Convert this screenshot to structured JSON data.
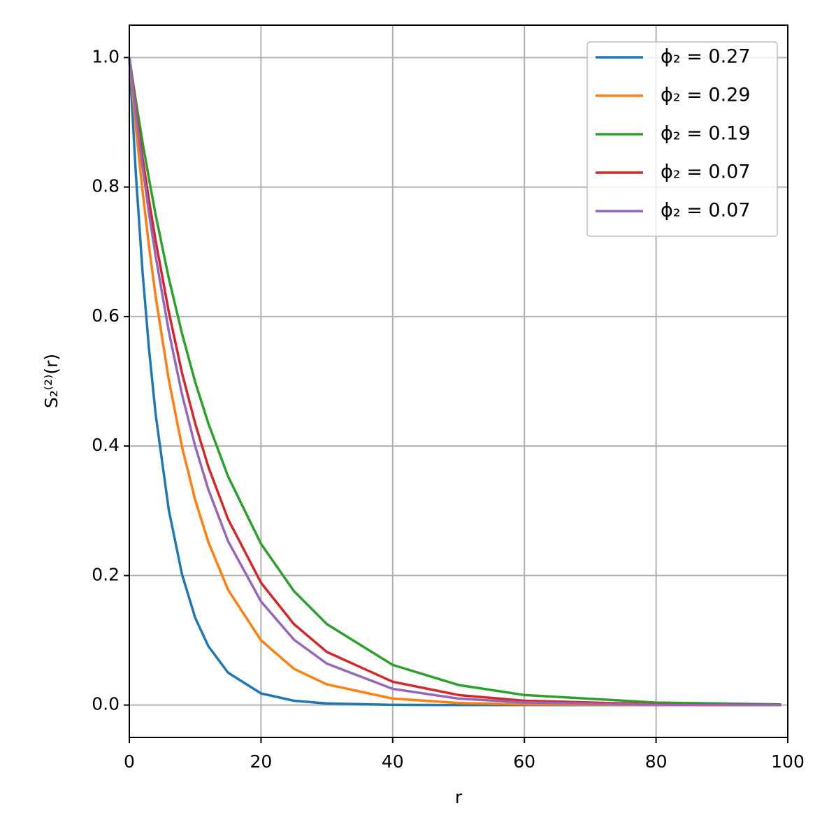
{
  "chart_data": {
    "type": "line",
    "x_label": "r",
    "y_label": "S₂⁽²⁾(r)",
    "x": [
      0,
      1,
      2,
      3,
      4,
      6,
      8,
      10,
      12,
      15,
      20,
      25,
      30,
      40,
      50,
      60,
      80,
      99
    ],
    "series": [
      {
        "name": "ϕ₂ = 0.27",
        "color": "#1f77b4",
        "values": [
          1,
          0.819,
          0.67,
          0.549,
          0.449,
          0.301,
          0.202,
          0.135,
          0.091,
          0.05,
          0.018,
          0.0067,
          0.0025,
          0.0003,
          0,
          0,
          0,
          0
        ]
      },
      {
        "name": "ϕ₂ = 0.29",
        "color": "#ff7f0e",
        "values": [
          1,
          0.891,
          0.795,
          0.708,
          0.631,
          0.502,
          0.399,
          0.317,
          0.252,
          0.178,
          0.1,
          0.056,
          0.032,
          0.01,
          0.0032,
          0.001,
          0.0001,
          0
        ]
      },
      {
        "name": "ϕ₂ = 0.19",
        "color": "#2ca02c",
        "values": [
          1,
          0.933,
          0.87,
          0.812,
          0.757,
          0.659,
          0.574,
          0.499,
          0.435,
          0.353,
          0.249,
          0.176,
          0.125,
          0.062,
          0.031,
          0.0155,
          0.0039,
          0.001
        ]
      },
      {
        "name": "ϕ₂ = 0.07",
        "color": "#d62728",
        "values": [
          1,
          0.92,
          0.846,
          0.779,
          0.717,
          0.607,
          0.513,
          0.435,
          0.368,
          0.287,
          0.189,
          0.125,
          0.082,
          0.036,
          0.0155,
          0.0067,
          0.0013,
          0.0003
        ]
      },
      {
        "name": "ϕ₂ = 0.07",
        "color": "#9467bd",
        "values": [
          1,
          0.912,
          0.832,
          0.759,
          0.693,
          0.577,
          0.48,
          0.4,
          0.333,
          0.253,
          0.16,
          0.101,
          0.064,
          0.025,
          0.01,
          0.004,
          0.0006,
          0.0001
        ]
      }
    ],
    "xlim": [
      0,
      100
    ],
    "ylim": [
      -0.05,
      1.05
    ],
    "xticks": [
      0,
      20,
      40,
      60,
      80,
      100
    ],
    "yticks": [
      {
        "value": 0,
        "label": "0.0"
      },
      0.2,
      0.4,
      0.6,
      0.8,
      {
        "value": 1,
        "label": "1.0"
      }
    ],
    "grid": true,
    "legend": "upper right"
  }
}
